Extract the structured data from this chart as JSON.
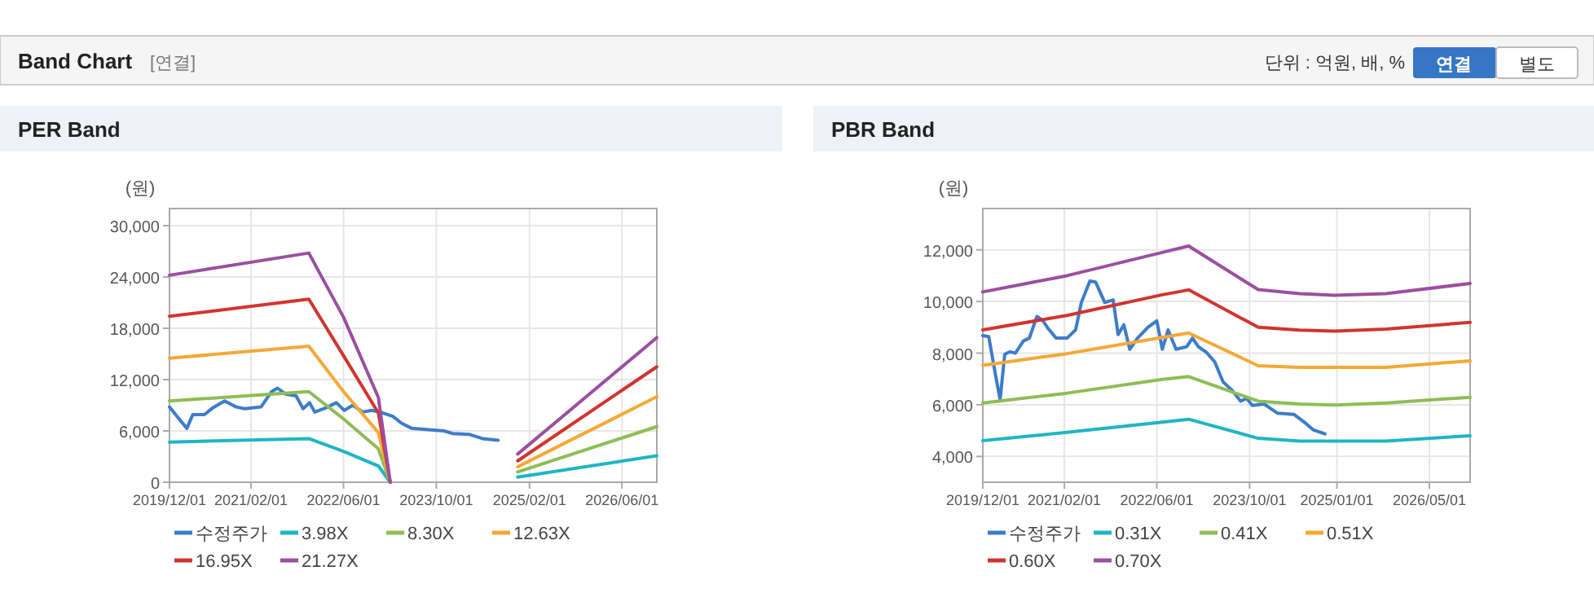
{
  "chart_data": [
    {
      "type": "other",
      "title": "Band Chart",
      "annotations": [
        "[연결]",
        "단위 : 억원, 배, %",
        "연결",
        "별도"
      ]
    },
    {
      "type": "line",
      "title": "PER Band",
      "ylabel": "(원)",
      "xlim": [
        "2019-12-01",
        "2026-12-01"
      ],
      "ylim": [
        0,
        32000
      ],
      "xticks": [
        {
          "value": "2019-12-01",
          "label": "2019/12/01"
        },
        {
          "value": "2021-02-01",
          "label": "2021/02/01"
        },
        {
          "value": "2022-06-01",
          "label": "2022/06/01"
        },
        {
          "value": "2023-10-01",
          "label": "2023/10/01"
        },
        {
          "value": "2025-02-01",
          "label": "2025/02/01"
        },
        {
          "value": "2026-06-01",
          "label": "2026/06/01"
        }
      ],
      "yticks": [
        0,
        {
          "value": 6000,
          "label": "6,000"
        },
        {
          "value": 12000,
          "label": "12,000"
        },
        {
          "value": 18000,
          "label": "18,000"
        },
        {
          "value": 24000,
          "label": "24,000"
        },
        {
          "value": 30000,
          "label": "30,000"
        }
      ],
      "grid": true,
      "legend": "bottom",
      "marker": "none",
      "line_style": "solid",
      "series": [
        {
          "name": "수정주가",
          "color": "#3d7cc9",
          "x": [
            "2019-12-01",
            "2020-01-20",
            "2020-03-01",
            "2020-04-01",
            "2020-06-01",
            "2020-07-15",
            "2020-09-15",
            "2020-11-15",
            "2020-12-30",
            "2021-03-25",
            "2021-05-20",
            "2021-06-20",
            "2021-08-01",
            "2021-09-25",
            "2021-11-01",
            "2021-12-05",
            "2022-01-01",
            "2022-03-01",
            "2022-04-25",
            "2022-06-05",
            "2022-07-20",
            "2022-09-10",
            "2022-10-25",
            "2022-12-10",
            "2023-02-15",
            "2023-04-01",
            "2023-05-25",
            "2023-09-15",
            "2023-11-10",
            "2023-12-25",
            "2024-03-20",
            "2024-05-30",
            "2024-08-20"
          ],
          "values": [
            8800,
            7400,
            6300,
            7900,
            7900,
            8700,
            9500,
            8800,
            8600,
            8800,
            10600,
            11000,
            10300,
            10100,
            8600,
            9300,
            8200,
            8700,
            9300,
            8400,
            9000,
            8200,
            8400,
            8200,
            7700,
            6900,
            6300,
            6100,
            6000,
            5700,
            5600,
            5100,
            4900
          ]
        },
        {
          "name": "3.98X",
          "color": "#1fb5c4",
          "x": [
            "2019-12-01",
            "2021-12-01",
            "2022-06-01",
            "2022-12-01",
            "2023-02-01",
            "2024-01-01",
            "2024-12-01",
            "2026-12-01"
          ],
          "values": [
            4700,
            5100,
            3600,
            1900,
            0,
            null,
            600,
            3100
          ]
        },
        {
          "name": "8.30X",
          "color": "#8ebd55",
          "x": [
            "2019-12-01",
            "2021-12-01",
            "2022-06-01",
            "2022-12-01",
            "2023-02-01",
            "2024-01-01",
            "2024-12-01",
            "2026-12-01"
          ],
          "values": [
            9500,
            10600,
            7400,
            3900,
            0,
            null,
            1200,
            6500
          ]
        },
        {
          "name": "12.63X",
          "color": "#f5a835",
          "x": [
            "2019-12-01",
            "2021-12-01",
            "2022-06-01",
            "2022-12-01",
            "2023-02-01",
            "2024-01-01",
            "2024-12-01",
            "2026-12-01"
          ],
          "values": [
            14500,
            15900,
            10600,
            5800,
            0,
            null,
            1800,
            10000
          ]
        },
        {
          "name": "16.95X",
          "color": "#d0352e",
          "x": [
            "2019-12-01",
            "2021-12-01",
            "2022-06-01",
            "2022-12-01",
            "2023-02-01",
            "2024-01-01",
            "2024-12-01",
            "2026-12-01"
          ],
          "values": [
            19400,
            21400,
            14800,
            8100,
            0,
            null,
            2500,
            13500
          ]
        },
        {
          "name": "21.27X",
          "color": "#9b4fa0",
          "x": [
            "2019-12-01",
            "2021-12-01",
            "2022-06-01",
            "2022-12-01",
            "2023-02-01",
            "2024-01-01",
            "2024-12-01",
            "2026-12-01"
          ],
          "values": [
            24200,
            26800,
            19300,
            9900,
            0,
            null,
            3300,
            16900
          ]
        }
      ]
    },
    {
      "type": "line",
      "title": "PBR Band",
      "ylabel": "(원)",
      "xlim": [
        "2019-12-01",
        "2026-12-01"
      ],
      "ylim": [
        3000,
        13600
      ],
      "xticks": [
        {
          "value": "2019-12-01",
          "label": "2019/12/01"
        },
        {
          "value": "2021-02-01",
          "label": "2021/02/01"
        },
        {
          "value": "2022-06-01",
          "label": "2022/06/01"
        },
        {
          "value": "2023-10-01",
          "label": "2023/10/01"
        },
        {
          "value": "2025-01-01",
          "label": "2025/01/01"
        },
        {
          "value": "2026-05-01",
          "label": "2026/05/01"
        }
      ],
      "yticks": [
        {
          "value": 4000,
          "label": "4,000"
        },
        {
          "value": 6000,
          "label": "6,000"
        },
        {
          "value": 8000,
          "label": "8,000"
        },
        {
          "value": 10000,
          "label": "10,000"
        },
        {
          "value": 12000,
          "label": "12,000"
        }
      ],
      "grid": true,
      "legend": "bottom",
      "marker": "none",
      "line_style": "solid",
      "series": [
        {
          "name": "수정주가",
          "color": "#3d7cc9",
          "x": [
            "2019-12-01",
            "2020-01-01",
            "2020-02-10",
            "2020-03-01",
            "2020-03-25",
            "2020-04-20",
            "2020-05-20",
            "2020-07-01",
            "2020-08-01",
            "2020-09-10",
            "2020-10-10",
            "2020-11-10",
            "2020-12-20",
            "2021-02-15",
            "2021-04-01",
            "2021-05-01",
            "2021-06-15",
            "2021-07-15",
            "2021-09-01",
            "2021-10-15",
            "2021-11-10",
            "2021-12-10",
            "2022-01-10",
            "2022-02-20",
            "2022-04-15",
            "2022-06-01",
            "2022-06-30",
            "2022-07-30",
            "2022-09-10",
            "2022-11-05",
            "2022-12-05",
            "2023-01-05",
            "2023-02-15",
            "2023-04-01",
            "2023-05-15",
            "2023-07-01",
            "2023-08-15",
            "2023-09-15",
            "2023-10-15",
            "2023-12-15",
            "2024-02-25",
            "2024-05-20",
            "2024-07-20",
            "2024-09-01",
            "2024-10-30"
          ],
          "values": [
            8680,
            8640,
            6980,
            6200,
            7950,
            8050,
            8000,
            8470,
            8580,
            9420,
            9270,
            8930,
            8580,
            8580,
            8900,
            9960,
            10790,
            10750,
            9960,
            10060,
            8720,
            9100,
            8150,
            8580,
            9000,
            9250,
            8150,
            8900,
            8150,
            8250,
            8580,
            8250,
            8040,
            7660,
            6880,
            6560,
            6140,
            6250,
            5970,
            6030,
            5670,
            5630,
            5290,
            5020,
            4870
          ]
        },
        {
          "name": "0.31X",
          "color": "#1fb5c4",
          "x": [
            "2019-12-01",
            "2021-02-15",
            "2022-06-30",
            "2022-11-15",
            "2023-11-15",
            "2024-06-20",
            "2024-12-20",
            "2025-09-15",
            "2026-12-01"
          ],
          "values": [
            4610,
            4930,
            5330,
            5440,
            4700,
            4590,
            4590,
            4590,
            4800
          ]
        },
        {
          "name": "0.41X",
          "color": "#8ebd55",
          "x": [
            "2019-12-01",
            "2021-02-15",
            "2022-06-30",
            "2022-11-15",
            "2023-11-15",
            "2024-06-20",
            "2024-12-20",
            "2025-09-15",
            "2026-12-01"
          ],
          "values": [
            6070,
            6450,
            6980,
            7090,
            6140,
            6030,
            5990,
            6070,
            6290
          ]
        },
        {
          "name": "0.51X",
          "color": "#f5a835",
          "x": [
            "2019-12-01",
            "2021-02-15",
            "2022-06-30",
            "2022-11-15",
            "2023-11-15",
            "2024-06-20",
            "2024-12-20",
            "2025-09-15",
            "2026-12-01"
          ],
          "values": [
            7530,
            7980,
            8610,
            8780,
            7510,
            7450,
            7450,
            7450,
            7700
          ]
        },
        {
          "name": "0.60X",
          "color": "#d0352e",
          "x": [
            "2019-12-01",
            "2021-02-15",
            "2022-06-30",
            "2022-11-15",
            "2023-11-15",
            "2024-06-20",
            "2024-12-20",
            "2025-09-15",
            "2026-12-01"
          ],
          "values": [
            8900,
            9460,
            10260,
            10450,
            9000,
            8890,
            8850,
            8930,
            9190
          ]
        },
        {
          "name": "0.70X",
          "color": "#9b4fa0",
          "x": [
            "2019-12-01",
            "2021-02-15",
            "2022-06-30",
            "2022-11-15",
            "2023-11-15",
            "2024-06-20",
            "2024-12-20",
            "2025-09-15",
            "2026-12-01"
          ],
          "values": [
            10370,
            11000,
            11900,
            12150,
            10460,
            10300,
            10240,
            10300,
            10700
          ]
        }
      ]
    }
  ]
}
